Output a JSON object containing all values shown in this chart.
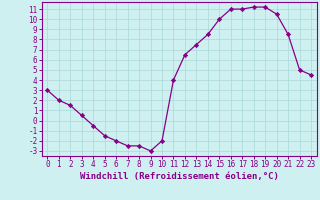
{
  "x": [
    0,
    1,
    2,
    3,
    4,
    5,
    6,
    7,
    8,
    9,
    10,
    11,
    12,
    13,
    14,
    15,
    16,
    17,
    18,
    19,
    20,
    21,
    22,
    23
  ],
  "y": [
    3,
    2,
    1.5,
    0.5,
    -0.5,
    -1.5,
    -2,
    -2.5,
    -2.5,
    -3,
    -2,
    4,
    6.5,
    7.5,
    8.5,
    10,
    11,
    11,
    11.2,
    11.2,
    10.5,
    8.5,
    5,
    4.5
  ],
  "xlabel": "Windchill (Refroidissement éolien,°C)",
  "ylim": [
    -3.5,
    11.7
  ],
  "xlim": [
    -0.5,
    23.5
  ],
  "line_color": "#880088",
  "marker": "D",
  "marker_size": 2.2,
  "bg_color": "#cff0f0",
  "grid_color": "#aad8d8",
  "axis_color": "#880088",
  "tick_color": "#880088",
  "yticks": [
    -3,
    -2,
    -1,
    0,
    1,
    2,
    3,
    4,
    5,
    6,
    7,
    8,
    9,
    10,
    11
  ],
  "xticks": [
    0,
    1,
    2,
    3,
    4,
    5,
    6,
    7,
    8,
    9,
    10,
    11,
    12,
    13,
    14,
    15,
    16,
    17,
    18,
    19,
    20,
    21,
    22,
    23
  ],
  "tick_fontsize": 5.5,
  "xlabel_fontsize": 6.5,
  "linewidth": 0.9
}
